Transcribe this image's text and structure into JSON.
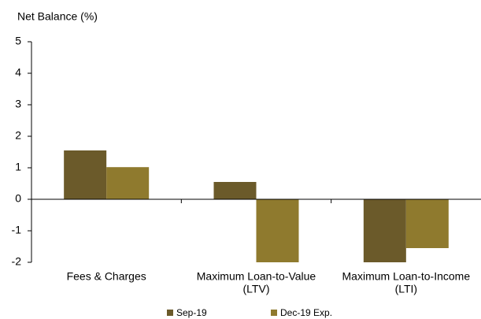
{
  "chart_data": {
    "type": "bar",
    "y_label": "Net Balance (%)",
    "categories": [
      [
        "Fees & Charges"
      ],
      [
        "Maximum Loan-to-Value",
        "(LTV)"
      ],
      [
        "Maximum Loan-to-Income",
        "(LTI)"
      ]
    ],
    "series": [
      {
        "name": "Sep-19",
        "color": "#6b5a2a",
        "values": [
          1.55,
          0.55,
          -2
        ]
      },
      {
        "name": "Dec-19 Exp.",
        "color": "#8f7a2e",
        "values": [
          1.02,
          -2,
          -1.55
        ]
      }
    ],
    "ylim": [
      -2,
      5
    ],
    "yticks": [
      -2,
      -1,
      0,
      1,
      2,
      3,
      4,
      5
    ]
  }
}
